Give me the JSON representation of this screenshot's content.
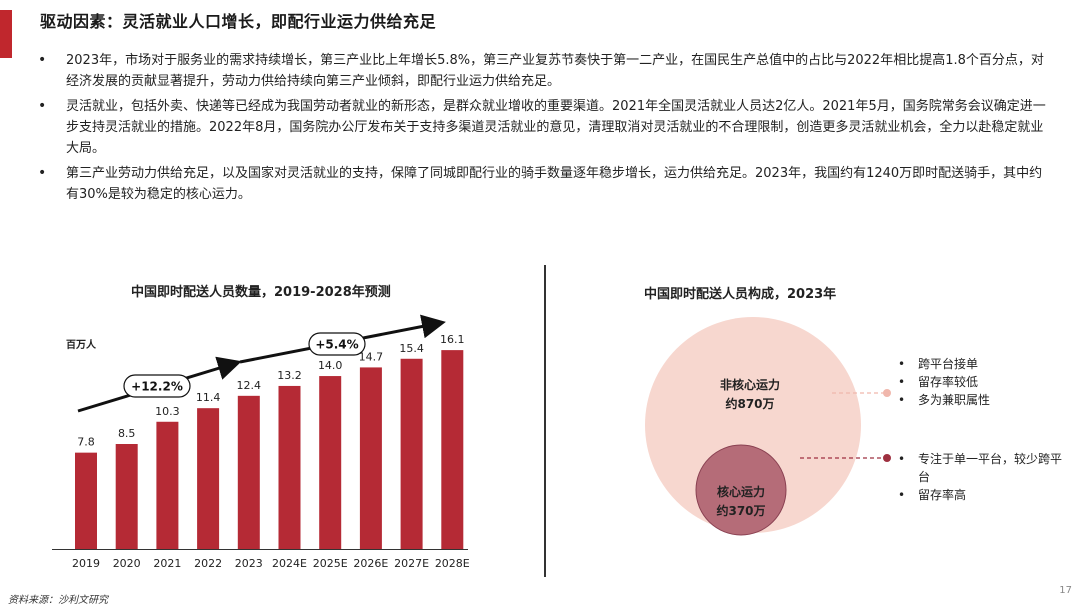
{
  "header": {
    "title": "驱动因素：灵活就业人口增长，即配行业运力供给充足"
  },
  "bullets": [
    "2023年，市场对于服务业的需求持续增长，第三产业比上年增长5.8%，第三产业复苏节奏快于第一二产业，在国民生产总值中的占比与2022年相比提高1.8个百分点，对经济发展的贡献显著提升，劳动力供给持续向第三产业倾斜，即配行业运力供给充足。",
    "灵活就业，包括外卖、快递等已经成为我国劳动者就业的新形态，是群众就业增收的重要渠道。2021年全国灵活就业人员达2亿人。2021年5月，国务院常务会议确定进一步支持灵活就业的措施。2022年8月，国务院办公厅发布关于支持多渠道灵活就业的意见，清理取消对灵活就业的不合理限制，创造更多灵活就业机会，全力以赴稳定就业大局。",
    "第三产业劳动力供给充足，以及国家对灵活就业的支持，保障了同城即配行业的骑手数量逐年稳步增长，运力供给充足。2023年，我国约有1240万即时配送骑手，其中约有30%是较为稳定的核心运力。"
  ],
  "bullet_symbol": "•",
  "colors": {
    "accent": "#c0272d",
    "bar": "#b52a35",
    "outer_circle": "#f7d7cf",
    "inner_circle": "#b56c78",
    "outer_dot": "#f0b7ac",
    "inner_dot": "#9e3040"
  },
  "chart_data": [
    {
      "type": "bar",
      "title": "中国即时配送人员数量，2019-2028年预测",
      "ylabel": "百万人",
      "categories": [
        "2019",
        "2020",
        "2021",
        "2022",
        "2023",
        "2024E",
        "2025E",
        "2026E",
        "2027E",
        "2028E"
      ],
      "values": [
        7.8,
        8.5,
        10.3,
        11.4,
        12.4,
        13.2,
        14.0,
        14.7,
        15.4,
        16.1
      ],
      "value_labels": [
        "7.8",
        "8.5",
        "10.3",
        "11.4",
        "12.4",
        "13.2",
        "14.0",
        "14.7",
        "15.4",
        "16.1"
      ],
      "ylim": [
        0,
        17
      ],
      "annotations": [
        {
          "label": "+12.2%",
          "from": "2019",
          "to": "2023"
        },
        {
          "label": "+5.4%",
          "from": "2024E",
          "to": "2028E"
        }
      ]
    },
    {
      "type": "nested-circle",
      "title": "中国即时配送人员构成，2023年",
      "segments": [
        {
          "name": "非核心运力",
          "value_label": "约870万",
          "value": 870,
          "notes": [
            "跨平台接单",
            "留存率较低",
            "多为兼职属性"
          ]
        },
        {
          "name": "核心运力",
          "value_label": "约370万",
          "value": 370,
          "notes": [
            "专注于单一平台，较少跨平台",
            "留存率高"
          ]
        }
      ]
    }
  ],
  "footer": {
    "source": "资料来源：沙利文研究",
    "page": "17"
  }
}
